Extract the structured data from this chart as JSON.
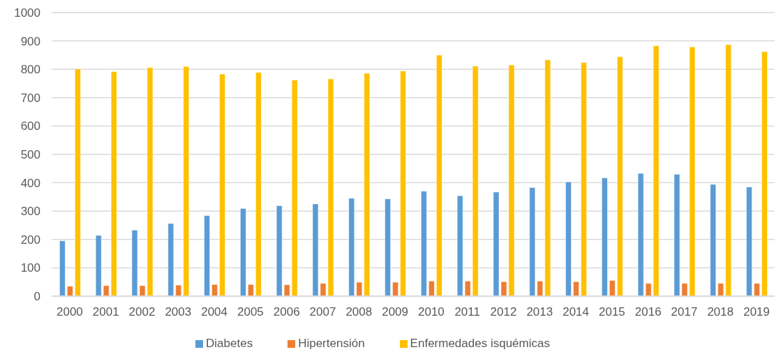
{
  "chart_data": {
    "type": "bar",
    "categories": [
      "2000",
      "2001",
      "2002",
      "2003",
      "2004",
      "2005",
      "2006",
      "2007",
      "2008",
      "2009",
      "2010",
      "2011",
      "2012",
      "2013",
      "2014",
      "2015",
      "2016",
      "2017",
      "2018",
      "2019"
    ],
    "series": [
      {
        "name": "Diabetes",
        "color": "#5b9bd5",
        "values": [
          195,
          214,
          233,
          256,
          284,
          309,
          319,
          325,
          345,
          343,
          370,
          354,
          367,
          383,
          403,
          417,
          433,
          430,
          394,
          385
        ]
      },
      {
        "name": "Hipertensión",
        "color": "#ed7d31",
        "values": [
          35,
          37,
          37,
          39,
          41,
          41,
          40,
          45,
          49,
          49,
          53,
          53,
          51,
          53,
          51,
          55,
          45,
          45,
          45,
          45
        ]
      },
      {
        "name": "Enfermedades isquémicas",
        "color": "#ffc000",
        "values": [
          801,
          792,
          806,
          810,
          783,
          789,
          762,
          766,
          786,
          794,
          850,
          811,
          815,
          833,
          824,
          844,
          883,
          879,
          887,
          862
        ]
      }
    ],
    "ylim": [
      0,
      1000
    ],
    "yticks": [
      0,
      100,
      200,
      300,
      400,
      500,
      600,
      700,
      800,
      900,
      1000
    ],
    "grid": "y",
    "legend": "bottom"
  }
}
